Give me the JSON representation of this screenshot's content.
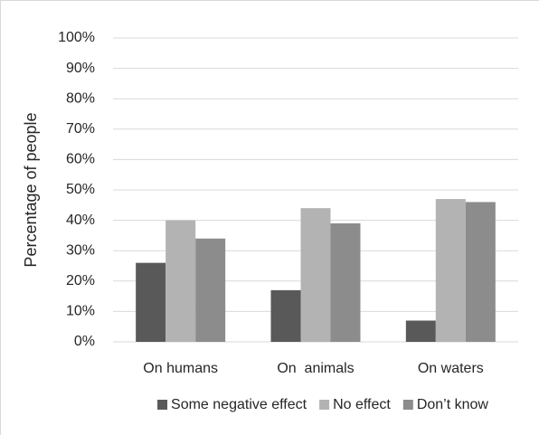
{
  "chart_data": {
    "type": "bar",
    "y_label": "Percentage of people",
    "categories": [
      "On humans",
      "On  animals",
      "On waters"
    ],
    "series": [
      {
        "name": "Some negative effect",
        "color": "#595959",
        "values": [
          26,
          17,
          7
        ]
      },
      {
        "name": "No effect",
        "color": "#b3b3b3",
        "values": [
          40,
          44,
          47
        ]
      },
      {
        "name": "Don’t know",
        "color": "#8c8c8c",
        "values": [
          34,
          39,
          46
        ]
      }
    ],
    "ylim": [
      0,
      100
    ],
    "yticks": [
      {
        "value": 0,
        "label": "0%"
      },
      {
        "value": 10,
        "label": "10%"
      },
      {
        "value": 20,
        "label": "20%"
      },
      {
        "value": 30,
        "label": "30%"
      },
      {
        "value": 40,
        "label": "40%"
      },
      {
        "value": 50,
        "label": "50%"
      },
      {
        "value": 60,
        "label": "60%"
      },
      {
        "value": 70,
        "label": "70%"
      },
      {
        "value": 80,
        "label": "80%"
      },
      {
        "value": 90,
        "label": "90%"
      },
      {
        "value": 100,
        "label": "100%"
      }
    ],
    "grid": true,
    "legend": "bottom"
  }
}
